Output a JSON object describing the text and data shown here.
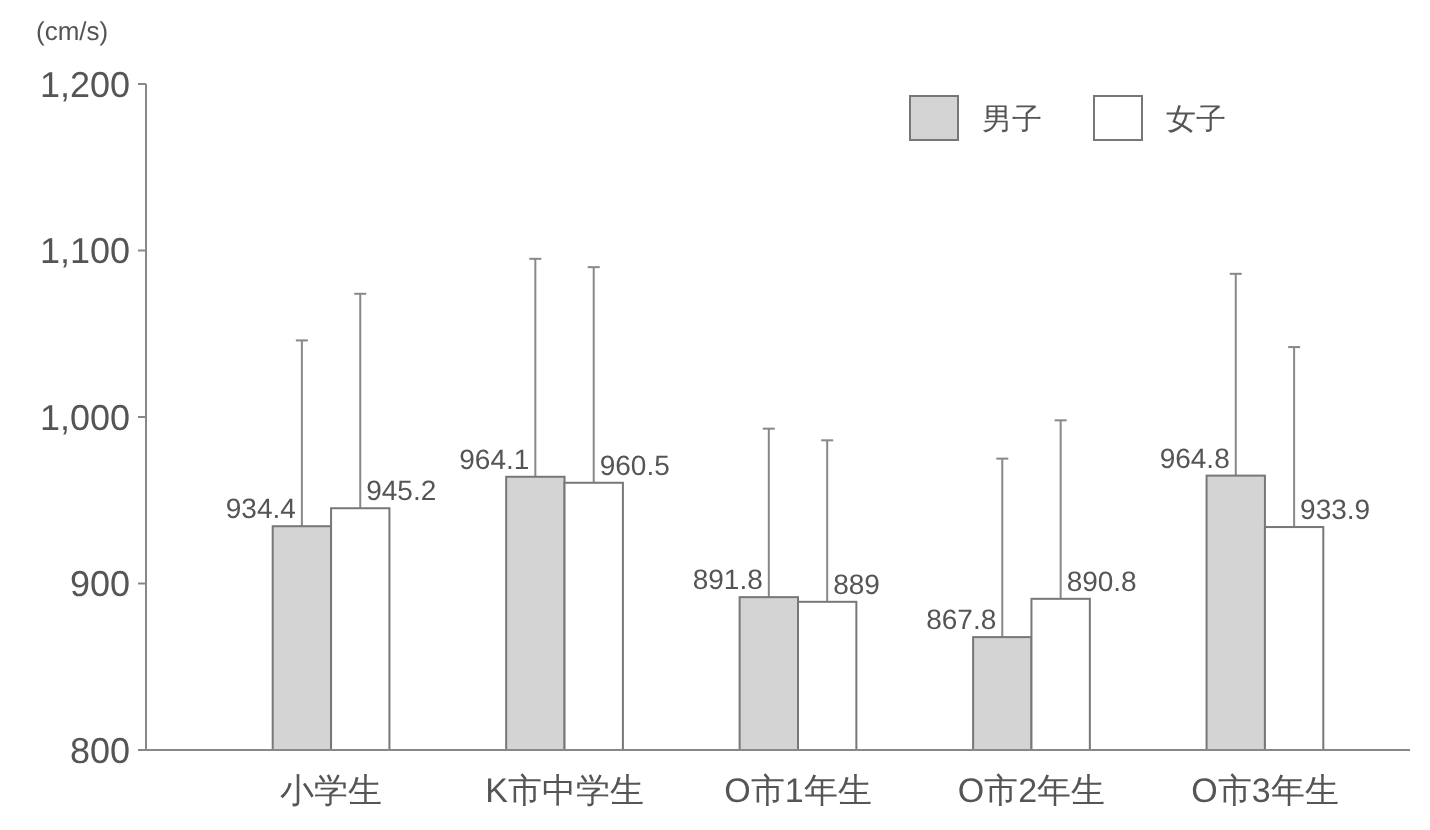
{
  "chart_data": {
    "type": "bar",
    "ylabel": "(cm/s)",
    "categories": [
      "小学生",
      "K市中学生",
      "O市1年生",
      "O市2年生",
      "O市3年生"
    ],
    "series": [
      {
        "name": "男子",
        "color": "#d4d4d4",
        "values": [
          934.4,
          964.1,
          891.8,
          867.8,
          964.8
        ],
        "errors": [
          [
            934.4,
            1046
          ],
          [
            964.1,
            1095
          ],
          [
            891.8,
            993
          ],
          [
            867.8,
            975
          ],
          [
            964.8,
            1086
          ]
        ]
      },
      {
        "name": "女子",
        "color": "#ffffff",
        "values": [
          945.2,
          960.5,
          889,
          890.8,
          933.9
        ],
        "errors": [
          [
            945.2,
            1074
          ],
          [
            960.5,
            1090
          ],
          [
            889,
            986
          ],
          [
            890.8,
            998
          ],
          [
            933.9,
            1042
          ]
        ]
      }
    ],
    "ylim": [
      800,
      1200
    ],
    "yticks": [
      800,
      {
        "value": 900,
        "label": "900"
      },
      {
        "value": 1000,
        "label": "1,000"
      },
      {
        "value": 1100,
        "label": "1,100"
      },
      {
        "value": 1200,
        "label": "1,200"
      }
    ],
    "data_labels": true,
    "legend": "top right",
    "grid": false
  }
}
